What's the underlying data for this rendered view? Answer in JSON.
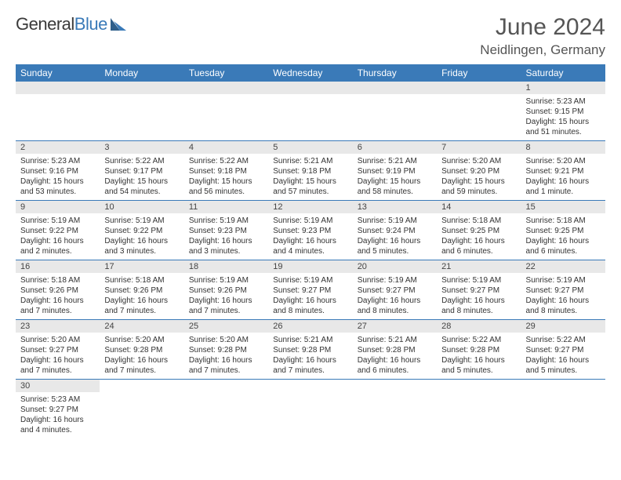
{
  "brand": {
    "part1": "General",
    "part2": "Blue"
  },
  "title": "June 2024",
  "location": "Neidlingen, Germany",
  "colors": {
    "header_bg": "#3a7ab8",
    "header_text": "#ffffff",
    "daynum_bg": "#e8e8e8",
    "border": "#3a7ab8",
    "text": "#333333",
    "title_text": "#555555"
  },
  "weekdays": [
    "Sunday",
    "Monday",
    "Tuesday",
    "Wednesday",
    "Thursday",
    "Friday",
    "Saturday"
  ],
  "weeks": [
    [
      null,
      null,
      null,
      null,
      null,
      null,
      {
        "n": "1",
        "sr": "Sunrise: 5:23 AM",
        "ss": "Sunset: 9:15 PM",
        "dl": "Daylight: 15 hours and 51 minutes."
      }
    ],
    [
      {
        "n": "2",
        "sr": "Sunrise: 5:23 AM",
        "ss": "Sunset: 9:16 PM",
        "dl": "Daylight: 15 hours and 53 minutes."
      },
      {
        "n": "3",
        "sr": "Sunrise: 5:22 AM",
        "ss": "Sunset: 9:17 PM",
        "dl": "Daylight: 15 hours and 54 minutes."
      },
      {
        "n": "4",
        "sr": "Sunrise: 5:22 AM",
        "ss": "Sunset: 9:18 PM",
        "dl": "Daylight: 15 hours and 56 minutes."
      },
      {
        "n": "5",
        "sr": "Sunrise: 5:21 AM",
        "ss": "Sunset: 9:18 PM",
        "dl": "Daylight: 15 hours and 57 minutes."
      },
      {
        "n": "6",
        "sr": "Sunrise: 5:21 AM",
        "ss": "Sunset: 9:19 PM",
        "dl": "Daylight: 15 hours and 58 minutes."
      },
      {
        "n": "7",
        "sr": "Sunrise: 5:20 AM",
        "ss": "Sunset: 9:20 PM",
        "dl": "Daylight: 15 hours and 59 minutes."
      },
      {
        "n": "8",
        "sr": "Sunrise: 5:20 AM",
        "ss": "Sunset: 9:21 PM",
        "dl": "Daylight: 16 hours and 1 minute."
      }
    ],
    [
      {
        "n": "9",
        "sr": "Sunrise: 5:19 AM",
        "ss": "Sunset: 9:22 PM",
        "dl": "Daylight: 16 hours and 2 minutes."
      },
      {
        "n": "10",
        "sr": "Sunrise: 5:19 AM",
        "ss": "Sunset: 9:22 PM",
        "dl": "Daylight: 16 hours and 3 minutes."
      },
      {
        "n": "11",
        "sr": "Sunrise: 5:19 AM",
        "ss": "Sunset: 9:23 PM",
        "dl": "Daylight: 16 hours and 3 minutes."
      },
      {
        "n": "12",
        "sr": "Sunrise: 5:19 AM",
        "ss": "Sunset: 9:23 PM",
        "dl": "Daylight: 16 hours and 4 minutes."
      },
      {
        "n": "13",
        "sr": "Sunrise: 5:19 AM",
        "ss": "Sunset: 9:24 PM",
        "dl": "Daylight: 16 hours and 5 minutes."
      },
      {
        "n": "14",
        "sr": "Sunrise: 5:18 AM",
        "ss": "Sunset: 9:25 PM",
        "dl": "Daylight: 16 hours and 6 minutes."
      },
      {
        "n": "15",
        "sr": "Sunrise: 5:18 AM",
        "ss": "Sunset: 9:25 PM",
        "dl": "Daylight: 16 hours and 6 minutes."
      }
    ],
    [
      {
        "n": "16",
        "sr": "Sunrise: 5:18 AM",
        "ss": "Sunset: 9:26 PM",
        "dl": "Daylight: 16 hours and 7 minutes."
      },
      {
        "n": "17",
        "sr": "Sunrise: 5:18 AM",
        "ss": "Sunset: 9:26 PM",
        "dl": "Daylight: 16 hours and 7 minutes."
      },
      {
        "n": "18",
        "sr": "Sunrise: 5:19 AM",
        "ss": "Sunset: 9:26 PM",
        "dl": "Daylight: 16 hours and 7 minutes."
      },
      {
        "n": "19",
        "sr": "Sunrise: 5:19 AM",
        "ss": "Sunset: 9:27 PM",
        "dl": "Daylight: 16 hours and 8 minutes."
      },
      {
        "n": "20",
        "sr": "Sunrise: 5:19 AM",
        "ss": "Sunset: 9:27 PM",
        "dl": "Daylight: 16 hours and 8 minutes."
      },
      {
        "n": "21",
        "sr": "Sunrise: 5:19 AM",
        "ss": "Sunset: 9:27 PM",
        "dl": "Daylight: 16 hours and 8 minutes."
      },
      {
        "n": "22",
        "sr": "Sunrise: 5:19 AM",
        "ss": "Sunset: 9:27 PM",
        "dl": "Daylight: 16 hours and 8 minutes."
      }
    ],
    [
      {
        "n": "23",
        "sr": "Sunrise: 5:20 AM",
        "ss": "Sunset: 9:27 PM",
        "dl": "Daylight: 16 hours and 7 minutes."
      },
      {
        "n": "24",
        "sr": "Sunrise: 5:20 AM",
        "ss": "Sunset: 9:28 PM",
        "dl": "Daylight: 16 hours and 7 minutes."
      },
      {
        "n": "25",
        "sr": "Sunrise: 5:20 AM",
        "ss": "Sunset: 9:28 PM",
        "dl": "Daylight: 16 hours and 7 minutes."
      },
      {
        "n": "26",
        "sr": "Sunrise: 5:21 AM",
        "ss": "Sunset: 9:28 PM",
        "dl": "Daylight: 16 hours and 7 minutes."
      },
      {
        "n": "27",
        "sr": "Sunrise: 5:21 AM",
        "ss": "Sunset: 9:28 PM",
        "dl": "Daylight: 16 hours and 6 minutes."
      },
      {
        "n": "28",
        "sr": "Sunrise: 5:22 AM",
        "ss": "Sunset: 9:28 PM",
        "dl": "Daylight: 16 hours and 5 minutes."
      },
      {
        "n": "29",
        "sr": "Sunrise: 5:22 AM",
        "ss": "Sunset: 9:27 PM",
        "dl": "Daylight: 16 hours and 5 minutes."
      }
    ],
    [
      {
        "n": "30",
        "sr": "Sunrise: 5:23 AM",
        "ss": "Sunset: 9:27 PM",
        "dl": "Daylight: 16 hours and 4 minutes."
      },
      null,
      null,
      null,
      null,
      null,
      null
    ]
  ]
}
